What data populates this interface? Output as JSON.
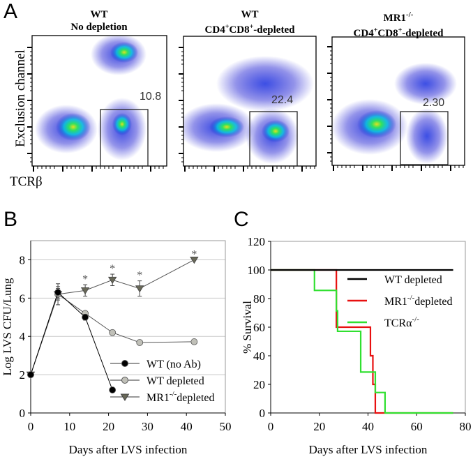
{
  "panels": {
    "a": "A",
    "b": "B",
    "c": "C"
  },
  "chart_data": [
    {
      "panel": "A",
      "type": "scatter",
      "xlabel": "TCRβ",
      "ylabel": "Exclusion channel",
      "plots": [
        {
          "title_line1": "WT",
          "title_line2": "No depletion",
          "gate_value": "10.8"
        },
        {
          "title_line1": "WT",
          "title_line2": "CD4+CD8+-depleted",
          "gate_value": "22.4"
        },
        {
          "title_line1": "MR1-/-",
          "title_line2": "CD4+CD8+-depleted",
          "gate_value": "2.30"
        }
      ],
      "colormap": [
        "#1010d0",
        "#00c8e0",
        "#30e060",
        "#e0e020"
      ]
    },
    {
      "panel": "B",
      "type": "line",
      "xlabel": "Days after LVS infection",
      "ylabel": "Log LVS CFU/Lung",
      "xlim": [
        0,
        50
      ],
      "ylim": [
        0,
        9
      ],
      "xticks": [
        0,
        10,
        20,
        30,
        40,
        50
      ],
      "yticks": [
        0,
        2,
        4,
        6,
        8
      ],
      "grid": "horizontal",
      "legend": "bottom-right",
      "series": [
        {
          "name": "WT (no Ab)",
          "marker": "circle",
          "color": "#000000",
          "x": [
            0,
            7,
            14,
            21
          ],
          "y": [
            2.0,
            6.3,
            5.0,
            1.2
          ],
          "err": [
            0,
            0.3,
            0.15,
            0
          ]
        },
        {
          "name": "WT depleted",
          "marker": "circle",
          "color": "#c0c0b8",
          "x": [
            0,
            7,
            14,
            21,
            28,
            42
          ],
          "y": [
            2.0,
            6.2,
            5.2,
            4.2,
            3.68,
            3.72
          ],
          "err": [
            0,
            0.3,
            0.1,
            0.1,
            0.1,
            0.1
          ]
        },
        {
          "name": "MR1-/-depleted",
          "marker": "triangle-down",
          "color": "#686858",
          "x": [
            0,
            7,
            14,
            21,
            28,
            42
          ],
          "y": [
            2.0,
            6.2,
            6.4,
            6.95,
            6.5,
            8.0
          ],
          "err": [
            0,
            0.55,
            0.3,
            0.3,
            0.4,
            0
          ]
        }
      ],
      "significance": [
        {
          "x": 14,
          "label": "*"
        },
        {
          "x": 21,
          "label": "*"
        },
        {
          "x": 28,
          "label": "*"
        },
        {
          "x": 42,
          "label": "*"
        }
      ]
    },
    {
      "panel": "C",
      "type": "line",
      "step": true,
      "xlabel": "Days after LVS infection",
      "ylabel": "% Survival",
      "xlim": [
        0,
        80
      ],
      "ylim": [
        0,
        120
      ],
      "xticks": [
        0,
        20,
        40,
        60,
        80
      ],
      "yticks": [
        0,
        20,
        40,
        60,
        80,
        100,
        120
      ],
      "legend": "top-right",
      "series": [
        {
          "name": "WT depleted",
          "color": "#000000",
          "x": [
            0,
            75
          ],
          "y": [
            100,
            100
          ]
        },
        {
          "name": "MR1-/-depleted",
          "color": "#e81010",
          "x": [
            0,
            27,
            41,
            42,
            43,
            75
          ],
          "y": [
            100,
            60,
            40,
            20,
            0,
            0
          ]
        },
        {
          "name": "TCRα-/-",
          "color": "#30e030",
          "x": [
            0,
            18,
            27,
            27.5,
            37,
            43,
            47,
            75
          ],
          "y": [
            100,
            85.7,
            71.4,
            57.1,
            28.6,
            14.3,
            0,
            0
          ]
        }
      ]
    }
  ]
}
